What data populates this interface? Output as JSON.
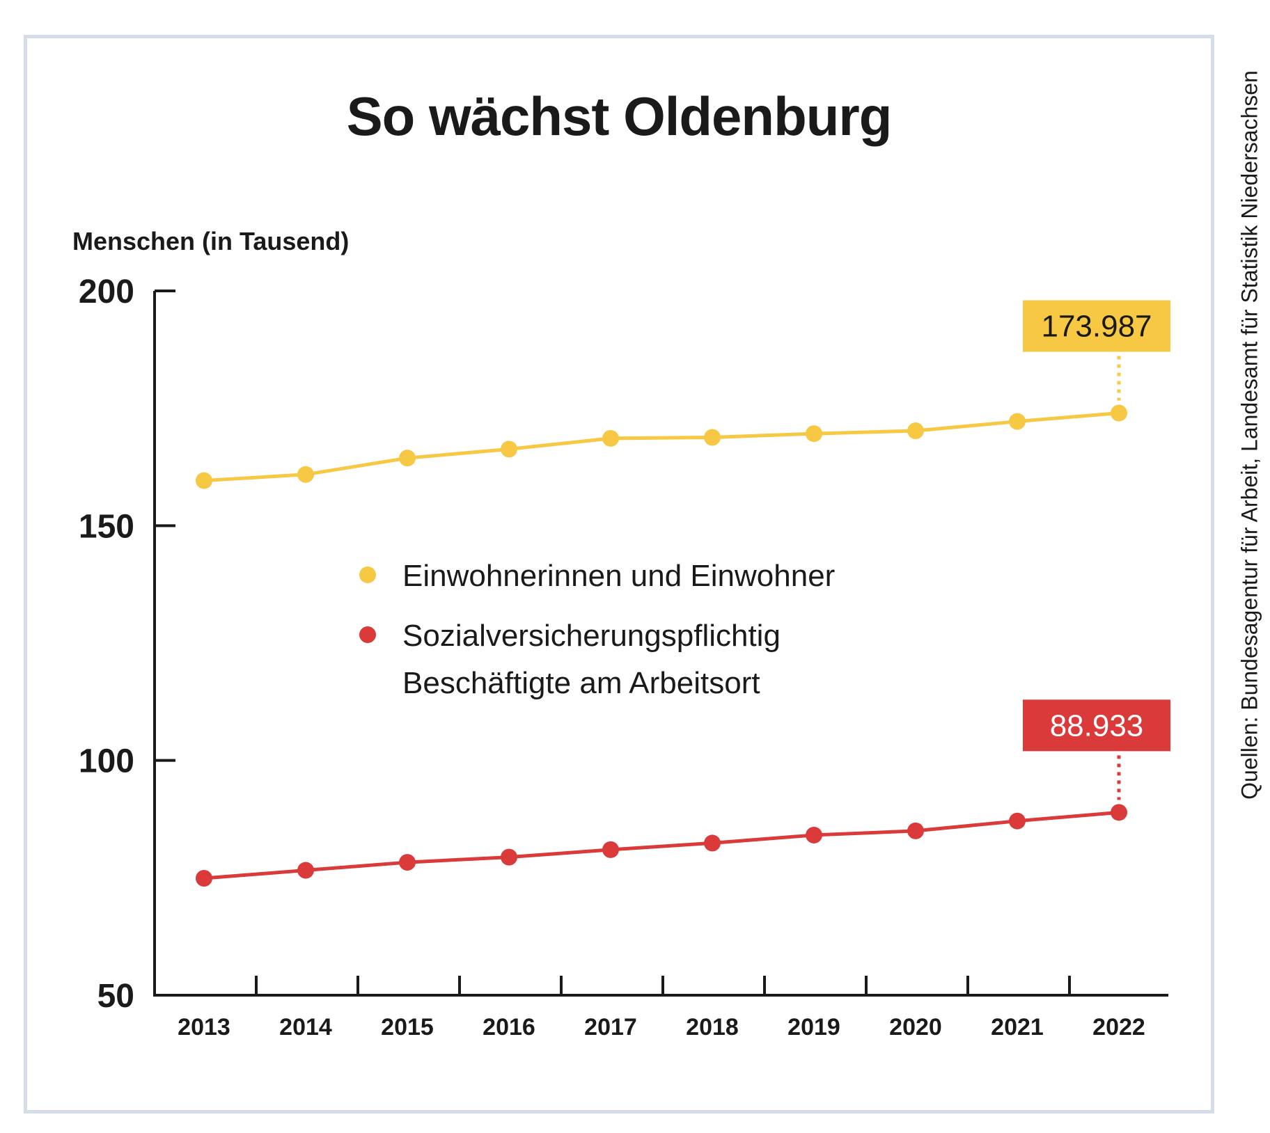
{
  "source": "Quellen: Bundesagentur für Arbeit, Landesamt für Statistik Niedersachsen",
  "chart_data": {
    "type": "line",
    "title": "So wächst Oldenburg",
    "ylabel": "Menschen (in Tausend)",
    "xlabel": "",
    "ylim": [
      50,
      200
    ],
    "yticks": [
      "50",
      "100",
      "150",
      "200"
    ],
    "x": [
      "2013",
      "2014",
      "2015",
      "2016",
      "2017",
      "2018",
      "2019",
      "2020",
      "2021",
      "2022"
    ],
    "grid": false,
    "legend_position": "center",
    "series": [
      {
        "name": "Einwohnerinnen und Einwohner",
        "legend_lines": [
          "Einwohnerinnen und Einwohner"
        ],
        "color": "#f7c844",
        "values": [
          159.6,
          160.9,
          164.4,
          166.3,
          168.6,
          168.8,
          169.6,
          170.2,
          172.2,
          173.987
        ],
        "callout": "173.987",
        "callout_text_color": "#1a1a1a"
      },
      {
        "name": "Sozialversicherungspflichtig Beschäftigte am Arbeitsort",
        "legend_lines": [
          "Sozialversicherungspflichtig",
          "Beschäftigte am Arbeitsort"
        ],
        "color": "#db3a3a",
        "values": [
          74.9,
          76.6,
          78.3,
          79.4,
          81.0,
          82.4,
          84.1,
          85.0,
          87.1,
          88.933
        ],
        "callout": "88.933",
        "callout_text_color": "#ffffff"
      }
    ]
  }
}
